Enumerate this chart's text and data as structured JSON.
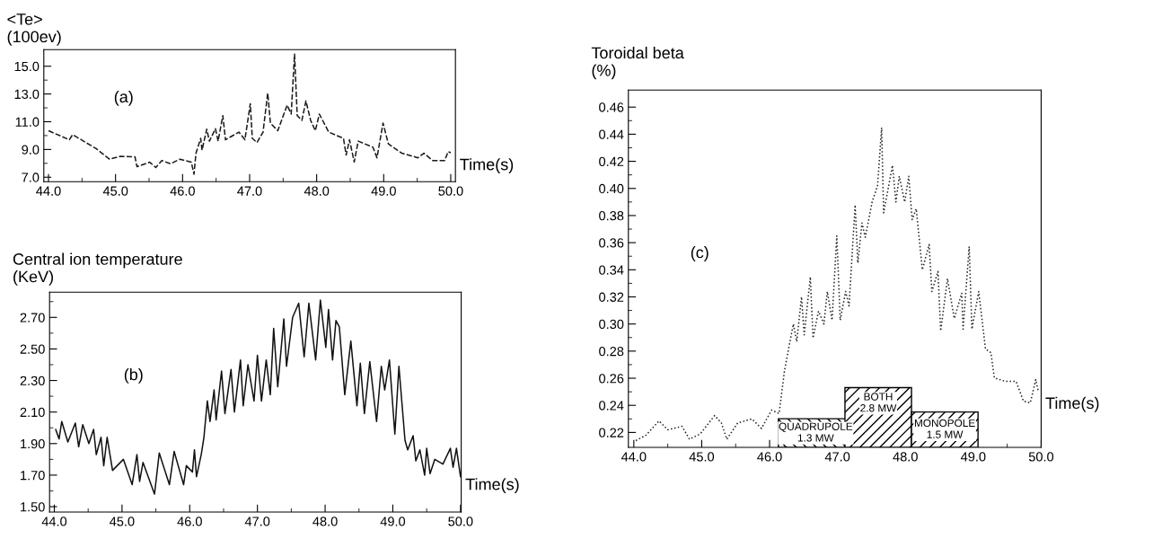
{
  "chart_data": [
    {
      "type": "line",
      "ylabel": "<Te>\n(100ev)",
      "xlabel": "Time(s)",
      "annotations": [
        "(a)"
      ],
      "line_style": "dashed",
      "marker": "none",
      "grid": false,
      "legend": false,
      "xlim": [
        43.93,
        50.07
      ],
      "ylim": [
        6.68,
        16.2
      ],
      "xticks": [
        {
          "value": 44,
          "label": "44.0"
        },
        {
          "value": 45,
          "label": "45.0"
        },
        {
          "value": 46,
          "label": "46.0"
        },
        {
          "value": 47,
          "label": "47.0"
        },
        {
          "value": 48,
          "label": "48.0"
        },
        {
          "value": 49,
          "label": "49.0"
        },
        {
          "value": 50,
          "label": "50.0"
        },
        {
          "value": 44.5,
          "label": null
        },
        {
          "value": 45.5,
          "label": null
        },
        {
          "value": 46.5,
          "label": null
        },
        {
          "value": 47.5,
          "label": null
        },
        {
          "value": 48.5,
          "label": null
        },
        {
          "value": 49.5,
          "label": null
        }
      ],
      "yticks": [
        {
          "value": 7,
          "label": "7.0"
        },
        {
          "value": 9,
          "label": "9.0"
        },
        {
          "value": 11,
          "label": "11.0"
        },
        {
          "value": 13,
          "label": "13.0"
        },
        {
          "value": 15,
          "label": "15.0"
        },
        {
          "value": 8,
          "label": null
        },
        {
          "value": 10,
          "label": null
        },
        {
          "value": 12,
          "label": null
        },
        {
          "value": 14,
          "label": null
        }
      ],
      "series": [
        {
          "color": "#1a1a1a",
          "x": [
            44.0,
            44.31,
            44.36,
            44.71,
            44.91,
            45.07,
            45.29,
            45.32,
            45.51,
            45.6,
            45.69,
            45.82,
            45.96,
            46.13,
            46.17,
            46.2,
            46.27,
            46.29,
            46.36,
            46.4,
            46.49,
            46.53,
            46.6,
            46.64,
            46.84,
            46.93,
            47.01,
            47.04,
            47.11,
            47.2,
            47.27,
            47.31,
            47.42,
            47.56,
            47.62,
            47.67,
            47.71,
            47.78,
            47.84,
            47.91,
            47.98,
            48.04,
            48.18,
            48.4,
            48.44,
            48.49,
            48.56,
            48.62,
            48.84,
            48.9,
            48.99,
            49.07,
            49.27,
            49.51,
            49.6,
            49.73,
            49.91,
            49.96,
            50.0
          ],
          "values": [
            10.35,
            9.7,
            10.07,
            9.06,
            8.3,
            8.5,
            8.47,
            7.76,
            8.08,
            7.7,
            8.2,
            7.97,
            8.3,
            8.08,
            7.22,
            8.73,
            9.8,
            8.95,
            10.46,
            9.6,
            10.5,
            9.6,
            11.44,
            9.7,
            10.25,
            9.7,
            12.3,
            9.8,
            9.5,
            10.25,
            13.06,
            10.9,
            10.35,
            12.2,
            11.55,
            15.87,
            11.44,
            11.1,
            12.5,
            11.1,
            10.35,
            11.55,
            10.25,
            9.8,
            8.6,
            9.7,
            8.1,
            9.6,
            9.16,
            8.4,
            10.9,
            9.4,
            8.73,
            8.4,
            8.73,
            8.2,
            8.2,
            8.84,
            8.77
          ]
        }
      ]
    },
    {
      "type": "line",
      "ylabel": "Central ion temperature\n(KeV)",
      "xlabel": "Time(s)",
      "annotations": [
        "(b)"
      ],
      "line_style": "solid",
      "marker": "none",
      "grid": false,
      "legend": false,
      "xlim": [
        43.93,
        50.01
      ],
      "ylim": [
        1.466,
        2.86
      ],
      "xticks": [
        {
          "value": 44,
          "label": "44.0"
        },
        {
          "value": 45,
          "label": "45.0"
        },
        {
          "value": 46,
          "label": "46.0"
        },
        {
          "value": 47,
          "label": "47.0"
        },
        {
          "value": 48,
          "label": "48.0"
        },
        {
          "value": 49,
          "label": "49.0"
        },
        {
          "value": 50,
          "label": "50.0"
        },
        {
          "value": 44.5,
          "label": null
        },
        {
          "value": 45.5,
          "label": null
        },
        {
          "value": 46.5,
          "label": null
        },
        {
          "value": 47.5,
          "label": null
        },
        {
          "value": 48.5,
          "label": null
        },
        {
          "value": 49.5,
          "label": null
        }
      ],
      "yticks": [
        {
          "value": 1.5,
          "label": "1.50"
        },
        {
          "value": 1.7,
          "label": "1.70"
        },
        {
          "value": 1.9,
          "label": "1.90"
        },
        {
          "value": 2.1,
          "label": "2.10"
        },
        {
          "value": 2.3,
          "label": "2.30"
        },
        {
          "value": 2.5,
          "label": "2.50"
        },
        {
          "value": 2.7,
          "label": "2.70"
        },
        {
          "value": 1.6,
          "label": null
        },
        {
          "value": 1.8,
          "label": null
        },
        {
          "value": 2.0,
          "label": null
        },
        {
          "value": 2.2,
          "label": null
        },
        {
          "value": 2.4,
          "label": null
        },
        {
          "value": 2.6,
          "label": null
        },
        {
          "value": 2.8,
          "label": null
        }
      ],
      "series": [
        {
          "color": "#111111",
          "x": [
            44.02,
            44.07,
            44.11,
            44.2,
            44.31,
            44.36,
            44.42,
            44.51,
            44.58,
            44.62,
            44.69,
            44.73,
            44.78,
            44.86,
            45.02,
            45.15,
            45.22,
            45.26,
            45.31,
            45.48,
            45.55,
            45.7,
            45.77,
            45.91,
            45.95,
            46.04,
            46.07,
            46.1,
            46.17,
            46.21,
            46.26,
            46.3,
            46.36,
            46.39,
            46.47,
            46.52,
            46.61,
            46.66,
            46.75,
            46.79,
            46.86,
            46.95,
            47.0,
            47.06,
            47.13,
            47.19,
            47.24,
            47.3,
            47.39,
            47.43,
            47.52,
            47.61,
            47.69,
            47.76,
            47.86,
            47.93,
            48.01,
            48.05,
            48.11,
            48.16,
            48.21,
            48.29,
            48.38,
            48.47,
            48.52,
            48.58,
            48.66,
            48.76,
            48.83,
            48.88,
            48.95,
            49.03,
            49.09,
            49.18,
            49.22,
            49.3,
            49.34,
            49.4,
            49.47,
            49.5,
            49.55,
            49.62,
            49.74,
            49.85,
            49.89,
            49.94,
            50.0
          ],
          "values": [
            1.99,
            1.93,
            2.04,
            1.91,
            2.03,
            1.88,
            2.02,
            1.9,
            1.99,
            1.83,
            1.94,
            1.76,
            1.94,
            1.73,
            1.8,
            1.64,
            1.83,
            1.66,
            1.78,
            1.58,
            1.84,
            1.64,
            1.85,
            1.64,
            1.76,
            1.72,
            1.86,
            1.69,
            1.83,
            1.94,
            2.17,
            2.04,
            2.24,
            2.05,
            2.36,
            2.09,
            2.37,
            2.1,
            2.43,
            2.14,
            2.4,
            2.17,
            2.46,
            2.17,
            2.43,
            2.21,
            2.63,
            2.26,
            2.69,
            2.39,
            2.7,
            2.79,
            2.45,
            2.79,
            2.43,
            2.81,
            2.51,
            2.75,
            2.43,
            2.68,
            2.64,
            2.21,
            2.55,
            2.14,
            2.41,
            2.09,
            2.42,
            2.04,
            2.39,
            2.24,
            2.43,
            1.96,
            2.39,
            1.92,
            1.86,
            1.95,
            1.79,
            1.86,
            1.7,
            1.87,
            1.71,
            1.8,
            1.77,
            1.87,
            1.75,
            1.87,
            1.69
          ]
        }
      ]
    },
    {
      "type": "line",
      "ylabel": "Toroidal beta\n(%)",
      "xlabel": "Time(s)",
      "annotations": [
        "(c)"
      ],
      "line_style": "dotted",
      "marker": "none",
      "grid": false,
      "legend": false,
      "xlim": [
        43.92,
        50.0
      ],
      "ylim": [
        0.209,
        0.4726
      ],
      "xticks": [
        {
          "value": 44,
          "label": "44.0"
        },
        {
          "value": 45,
          "label": "45.0"
        },
        {
          "value": 46,
          "label": "46.0"
        },
        {
          "value": 47,
          "label": "47.0"
        },
        {
          "value": 48,
          "label": "48.0"
        },
        {
          "value": 49,
          "label": "49.0"
        },
        {
          "value": 50,
          "label": "50.0"
        },
        {
          "value": 44.5,
          "label": null
        },
        {
          "value": 45.5,
          "label": null
        },
        {
          "value": 46.5,
          "label": null
        },
        {
          "value": 47.5,
          "label": null
        },
        {
          "value": 48.5,
          "label": null
        },
        {
          "value": 49.5,
          "label": null
        }
      ],
      "yticks": [
        {
          "value": 0.22,
          "label": "0.22"
        },
        {
          "value": 0.24,
          "label": "0.24"
        },
        {
          "value": 0.26,
          "label": "0.26"
        },
        {
          "value": 0.28,
          "label": "0.28"
        },
        {
          "value": 0.3,
          "label": "0.30"
        },
        {
          "value": 0.32,
          "label": "0.32"
        },
        {
          "value": 0.34,
          "label": "0.34"
        },
        {
          "value": 0.36,
          "label": "0.36"
        },
        {
          "value": 0.38,
          "label": "0.38"
        },
        {
          "value": 0.4,
          "label": "0.40"
        },
        {
          "value": 0.42,
          "label": "0.42"
        },
        {
          "value": 0.44,
          "label": "0.44"
        },
        {
          "value": 0.46,
          "label": "0.46"
        },
        {
          "value": 0.23,
          "label": null
        },
        {
          "value": 0.25,
          "label": null
        },
        {
          "value": 0.27,
          "label": null
        },
        {
          "value": 0.29,
          "label": null
        },
        {
          "value": 0.31,
          "label": null
        },
        {
          "value": 0.33,
          "label": null
        },
        {
          "value": 0.35,
          "label": null
        },
        {
          "value": 0.37,
          "label": null
        },
        {
          "value": 0.39,
          "label": null
        },
        {
          "value": 0.41,
          "label": null
        },
        {
          "value": 0.43,
          "label": null
        },
        {
          "value": 0.45,
          "label": null
        }
      ],
      "bands": [
        {
          "axis": "x",
          "from": 46.13,
          "to": 48.09,
          "label": "QUADRUPOLE\n1.3 MW",
          "color": "#000000"
        },
        {
          "axis": "x",
          "from": 47.11,
          "to": 48.09,
          "label": "BOTH\n2.8 MW",
          "color": "#000000"
        },
        {
          "axis": "x",
          "from": 48.09,
          "to": 49.07,
          "label": "MONOPOLE\n1.5 MW",
          "color": "#000000"
        }
      ],
      "series": [
        {
          "color": "#222222",
          "x": [
            44.03,
            44.18,
            44.37,
            44.5,
            44.71,
            44.82,
            44.98,
            45.19,
            45.29,
            45.37,
            45.53,
            45.74,
            45.88,
            46.03,
            46.14,
            46.22,
            46.27,
            46.35,
            46.4,
            46.47,
            46.51,
            46.6,
            46.64,
            46.72,
            46.8,
            46.85,
            46.92,
            46.99,
            47.04,
            47.12,
            47.17,
            47.26,
            47.3,
            47.36,
            47.41,
            47.51,
            47.59,
            47.65,
            47.68,
            47.81,
            47.86,
            47.91,
            47.99,
            48.05,
            48.1,
            48.16,
            48.25,
            48.35,
            48.39,
            48.48,
            48.52,
            48.62,
            48.72,
            48.83,
            48.85,
            48.94,
            48.98,
            49.08,
            49.18,
            49.26,
            49.31,
            49.47,
            49.63,
            49.74,
            49.84,
            49.92,
            49.96
          ],
          "values": [
            0.214,
            0.218,
            0.2285,
            0.222,
            0.2245,
            0.215,
            0.219,
            0.2325,
            0.227,
            0.215,
            0.227,
            0.23,
            0.223,
            0.2365,
            0.234,
            0.2657,
            0.279,
            0.3,
            0.287,
            0.32,
            0.292,
            0.3347,
            0.2896,
            0.3095,
            0.3,
            0.324,
            0.3028,
            0.365,
            0.3028,
            0.324,
            0.3134,
            0.3878,
            0.345,
            0.3745,
            0.364,
            0.39,
            0.402,
            0.4448,
            0.382,
            0.417,
            0.39,
            0.409,
            0.39,
            0.409,
            0.377,
            0.385,
            0.34,
            0.3586,
            0.324,
            0.3387,
            0.2949,
            0.3334,
            0.3041,
            0.3227,
            0.2962,
            0.3572,
            0.2962,
            0.324,
            0.2816,
            0.2789,
            0.2603,
            0.2577,
            0.2577,
            0.2431,
            0.2418,
            0.259,
            0.2497
          ]
        }
      ]
    }
  ]
}
